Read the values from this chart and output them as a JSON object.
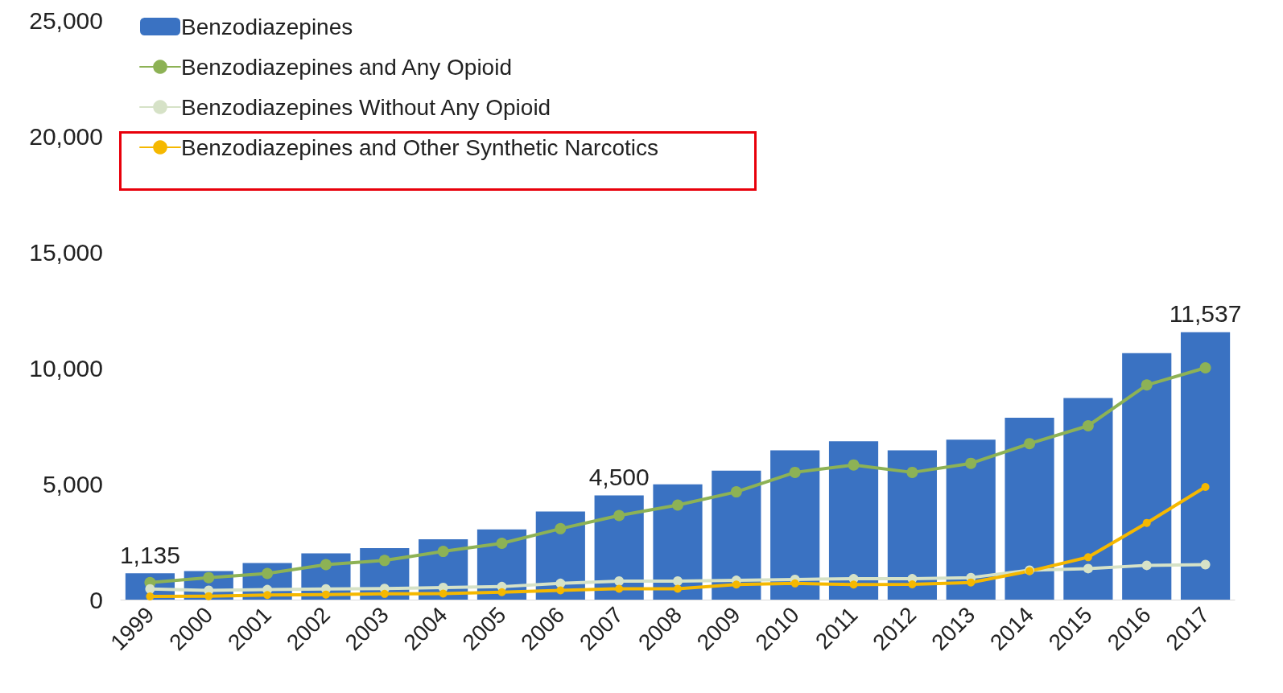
{
  "chart_data": {
    "type": "bar",
    "categories": [
      "1999",
      "2000",
      "2001",
      "2002",
      "2003",
      "2004",
      "2005",
      "2006",
      "2007",
      "2008",
      "2009",
      "2010",
      "2011",
      "2012",
      "2013",
      "2014",
      "2015",
      "2016",
      "2017"
    ],
    "series": [
      {
        "name": "Benzodiazepines",
        "color": "#3a72c2",
        "values": [
          1135,
          1230,
          1580,
          2000,
          2220,
          2600,
          3030,
          3800,
          4500,
          4970,
          5560,
          6440,
          6830,
          6440,
          6900,
          7850,
          8700,
          10630,
          11537
        ],
        "value_labels": [
          "1,135",
          null,
          null,
          null,
          null,
          null,
          null,
          null,
          "4,500",
          null,
          null,
          null,
          null,
          null,
          null,
          null,
          null,
          null,
          "11,537"
        ]
      },
      {
        "name": "Benzodiazepines and Any Opioid",
        "type": "line",
        "color": "#8db255",
        "values": [
          740,
          950,
          1130,
          1510,
          1690,
          2080,
          2430,
          3060,
          3630,
          4080,
          4650,
          5490,
          5810,
          5490,
          5880,
          6730,
          7500,
          9260,
          10000
        ]
      },
      {
        "name": "Benzodiazepines Without Any Opioid",
        "type": "line",
        "color": "#d6e2c7",
        "values": [
          460,
          400,
          430,
          460,
          480,
          520,
          560,
          700,
          800,
          800,
          830,
          870,
          900,
          900,
          950,
          1270,
          1340,
          1480,
          1510
        ]
      },
      {
        "name": "Benzodiazepines and Other Synthetic Narcotics",
        "type": "line",
        "color": "#f5b800",
        "values": [
          140,
          150,
          200,
          220,
          250,
          260,
          320,
          400,
          470,
          470,
          650,
          700,
          650,
          660,
          740,
          1230,
          1830,
          3310,
          4860
        ]
      }
    ],
    "ylim": [
      0,
      25000
    ],
    "yticks": [
      0,
      {
        "value": 5000,
        "label": "5,000"
      },
      {
        "value": 10000,
        "label": "10,000"
      },
      {
        "value": 15000,
        "label": "15,000"
      },
      {
        "value": 20000,
        "label": "20,000"
      },
      {
        "value": 25000,
        "label": "25,000"
      }
    ],
    "grid": false,
    "legend": "top left",
    "marker": "circle",
    "line_style": "solid"
  }
}
